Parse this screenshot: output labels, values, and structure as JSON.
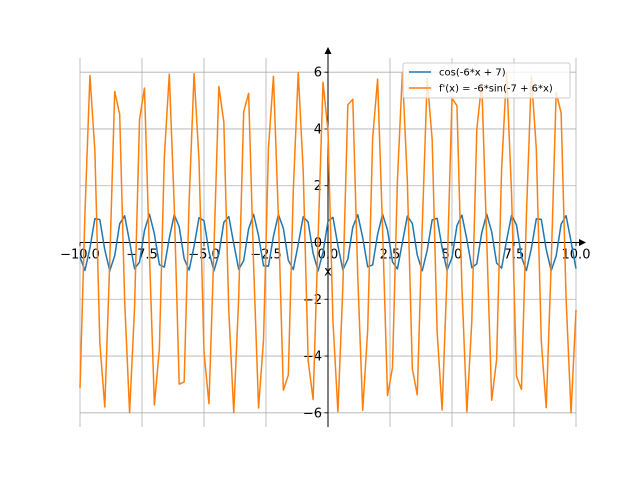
{
  "chart_data": {
    "type": "line",
    "xlabel": "x",
    "ylabel": "",
    "xlim": [
      -10.0,
      10.0
    ],
    "ylim": [
      -6.5,
      6.5
    ],
    "xticks": [
      -10.0,
      -7.5,
      -5.0,
      -2.5,
      0.0,
      2.5,
      5.0,
      7.5,
      10.0
    ],
    "xtick_labels": [
      "−10.0",
      "−7.5",
      "−5.0",
      "−2.5",
      "0.0",
      "2.5",
      "5.0",
      "7.5",
      "10.0"
    ],
    "yticks": [
      -6,
      -4,
      -2,
      0,
      2,
      4,
      6
    ],
    "ytick_labels": [
      "−6",
      "−4",
      "−2",
      "0",
      "2",
      "4",
      "6"
    ],
    "grid": true,
    "legend_position": "top-right",
    "sample_count": 101,
    "series": [
      {
        "name": "cos(-6*x + 7)",
        "color": "#1f77b4",
        "expr": "cos(-6*x+7)"
      },
      {
        "name": "f'(x) = -6*sin(-7 + 6*x)",
        "color": "#ff7f0e",
        "expr": "-6*sin(-7+6*x)"
      }
    ]
  }
}
